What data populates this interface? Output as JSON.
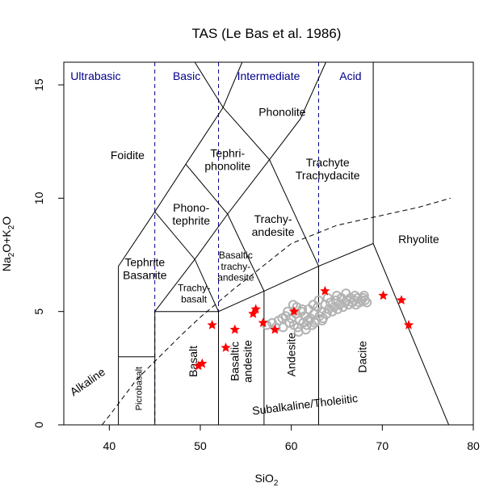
{
  "chart_data": {
    "type": "scatter",
    "title": "TAS (Le Bas et al. 1986)",
    "xlabel": "SiO",
    "xlabel_sub": "2",
    "ylabel_parts": [
      "Na",
      "2",
      "O+K",
      "2",
      "O"
    ],
    "xlim": [
      35,
      80
    ],
    "ylim": [
      0,
      16
    ],
    "x_ticks": [
      40,
      50,
      60,
      70,
      80
    ],
    "y_ticks": [
      0,
      5,
      10,
      15
    ],
    "colors": {
      "series_grey": "#b3b3b3",
      "series_red": "#ff0000",
      "category_labels": "#00008b",
      "lines": "#000000"
    },
    "category_boundaries": [
      45,
      52,
      63
    ],
    "categories": [
      {
        "label": "Ultrabasic",
        "x": 38.5
      },
      {
        "label": "Basic",
        "x": 48.5
      },
      {
        "label": "Intermediate",
        "x": 57.5
      },
      {
        "label": "Acid",
        "x": 66.5
      }
    ],
    "category_label_y": 15.4,
    "field_labels": [
      {
        "lines": [
          "Phonolite"
        ],
        "x": 59.0,
        "y": 13.8,
        "rot": 0
      },
      {
        "lines": [
          "Foidite"
        ],
        "x": 42.0,
        "y": 11.9,
        "rot": 0
      },
      {
        "lines": [
          "Tephri-",
          "phonolite"
        ],
        "x": 53.0,
        "y": 11.7,
        "rot": 0
      },
      {
        "lines": [
          "Trachyte",
          "Trachydacite"
        ],
        "x": 64.0,
        "y": 11.3,
        "rot": 0
      },
      {
        "lines": [
          "Phono-",
          "tephrite"
        ],
        "x": 49.0,
        "y": 9.3,
        "rot": 0
      },
      {
        "lines": [
          "Trachy-",
          "andesite"
        ],
        "x": 58.0,
        "y": 8.8,
        "rot": 0
      },
      {
        "lines": [
          "Rhyolite"
        ],
        "x": 74.0,
        "y": 8.2,
        "rot": 0
      },
      {
        "lines": [
          "Basaltic",
          "trachy-",
          "andesite"
        ],
        "x": 53.9,
        "y": 7.0,
        "rot": 0,
        "size": 12
      },
      {
        "lines": [
          "Tephrite",
          "Basanite"
        ],
        "x": 43.9,
        "y": 6.9,
        "rot": 0
      },
      {
        "lines": [
          "Trachy-",
          "basalt"
        ],
        "x": 49.3,
        "y": 5.8,
        "rot": 0,
        "size": 12
      },
      {
        "lines": [
          "Basalt"
        ],
        "x": 49.2,
        "y": 2.8,
        "rot": -90
      },
      {
        "lines": [
          "Basaltic",
          "andesite"
        ],
        "x": 54.5,
        "y": 2.8,
        "rot": -90
      },
      {
        "lines": [
          "Andesite"
        ],
        "x": 60.0,
        "y": 3.1,
        "rot": -90
      },
      {
        "lines": [
          "Dacite"
        ],
        "x": 67.8,
        "y": 3.0,
        "rot": -90
      },
      {
        "lines": [
          "Picrobasalt"
        ],
        "x": 43.2,
        "y": 1.6,
        "rot": -90,
        "size": 11
      },
      {
        "lines": [
          "Alkaline"
        ],
        "x": 37.6,
        "y": 1.9,
        "rot": -35
      },
      {
        "lines": [
          "Subalkaline/Tholeiitic"
        ],
        "x": 61.5,
        "y": 0.9,
        "rot": -7
      }
    ],
    "field_lines": [
      [
        [
          41,
          0
        ],
        [
          41,
          7
        ],
        [
          45,
          9.4
        ],
        [
          48.4,
          11.5
        ],
        [
          52.5,
          14
        ],
        [
          54.6,
          16
        ]
      ],
      [
        [
          41,
          3
        ],
        [
          45,
          3
        ]
      ],
      [
        [
          45,
          0
        ],
        [
          45,
          5
        ],
        [
          49.4,
          7.3
        ],
        [
          53,
          9.3
        ],
        [
          57.6,
          11.7
        ],
        [
          61,
          13.5
        ],
        [
          63.8,
          16
        ]
      ],
      [
        [
          45,
          5
        ],
        [
          52,
          5
        ],
        [
          57,
          5.9
        ],
        [
          63,
          7
        ],
        [
          69,
          8
        ],
        [
          69,
          16
        ]
      ],
      [
        [
          52,
          0
        ],
        [
          52,
          5
        ]
      ],
      [
        [
          57,
          0
        ],
        [
          57,
          5.9
        ]
      ],
      [
        [
          63,
          0
        ],
        [
          63,
          7
        ]
      ],
      [
        [
          69,
          8
        ],
        [
          77.3,
          0
        ]
      ],
      [
        [
          45,
          9.4
        ],
        [
          49.4,
          7.3
        ],
        [
          52,
          5
        ]
      ],
      [
        [
          48.4,
          11.5
        ],
        [
          53,
          9.3
        ],
        [
          57,
          5.9
        ]
      ],
      [
        [
          52.5,
          14
        ],
        [
          57.6,
          11.7
        ],
        [
          63,
          7
        ]
      ],
      [
        [
          52.5,
          14
        ],
        [
          49.4,
          16
        ]
      ]
    ],
    "dashed_curve": [
      [
        39.2,
        0
      ],
      [
        40,
        0.4
      ],
      [
        43,
        2
      ],
      [
        45,
        2.8
      ],
      [
        48,
        4
      ],
      [
        50,
        4.75
      ],
      [
        53.7,
        6
      ],
      [
        55,
        6.4
      ],
      [
        60,
        8
      ],
      [
        65,
        8.8
      ],
      [
        74,
        9.6
      ],
      [
        77.5,
        10
      ]
    ],
    "series": [
      {
        "name": "red",
        "marker": "star",
        "points": [
          [
            49.8,
            2.6
          ],
          [
            50.2,
            2.7
          ],
          [
            51.3,
            4.4
          ],
          [
            52.8,
            3.4
          ],
          [
            53.8,
            4.2
          ],
          [
            55.8,
            4.9
          ],
          [
            56.1,
            5.1
          ],
          [
            56.9,
            4.5
          ],
          [
            58.2,
            4.2
          ],
          [
            60.3,
            5.0
          ],
          [
            63.7,
            5.9
          ],
          [
            70.1,
            5.7
          ],
          [
            72.1,
            5.5
          ],
          [
            72.9,
            4.4
          ]
        ]
      },
      {
        "name": "grey",
        "marker": "circle",
        "points": [
          [
            57.3,
            4.4
          ],
          [
            57.9,
            4.5
          ],
          [
            58.6,
            4.6
          ],
          [
            59.1,
            4.3
          ],
          [
            59.4,
            4.8
          ],
          [
            59.8,
            4.5
          ],
          [
            60.0,
            4.7
          ],
          [
            60.3,
            4.4
          ],
          [
            60.5,
            4.9
          ],
          [
            60.7,
            4.3
          ],
          [
            60.9,
            4.6
          ],
          [
            61.1,
            5.0
          ],
          [
            61.3,
            4.5
          ],
          [
            61.5,
            4.8
          ],
          [
            61.7,
            4.4
          ],
          [
            61.9,
            5.1
          ],
          [
            62.1,
            4.7
          ],
          [
            62.3,
            4.4
          ],
          [
            62.5,
            4.9
          ],
          [
            62.7,
            4.6
          ],
          [
            62.9,
            5.2
          ],
          [
            63.1,
            4.8
          ],
          [
            63.3,
            5.0
          ],
          [
            63.5,
            4.7
          ],
          [
            63.7,
            5.3
          ],
          [
            63.9,
            4.9
          ],
          [
            64.1,
            5.1
          ],
          [
            64.3,
            5.4
          ],
          [
            64.5,
            5.0
          ],
          [
            64.7,
            5.2
          ],
          [
            64.9,
            5.5
          ],
          [
            65.1,
            5.1
          ],
          [
            65.3,
            5.3
          ],
          [
            65.5,
            5.6
          ],
          [
            65.7,
            5.2
          ],
          [
            65.9,
            5.4
          ],
          [
            66.1,
            5.5
          ],
          [
            66.3,
            5.3
          ],
          [
            66.5,
            5.6
          ],
          [
            66.7,
            5.4
          ],
          [
            66.9,
            5.5
          ],
          [
            67.1,
            5.3
          ],
          [
            67.3,
            5.6
          ],
          [
            67.5,
            5.4
          ],
          [
            67.7,
            5.5
          ],
          [
            67.9,
            5.6
          ],
          [
            68.1,
            5.5
          ],
          [
            68.3,
            5.4
          ],
          [
            60.2,
            5.3
          ],
          [
            60.6,
            5.2
          ],
          [
            61.2,
            5.1
          ],
          [
            59.6,
            5.0
          ],
          [
            62.4,
            5.3
          ],
          [
            63.0,
            5.5
          ],
          [
            64.0,
            5.6
          ],
          [
            65.0,
            5.7
          ],
          [
            66.0,
            5.8
          ],
          [
            67.0,
            5.7
          ],
          [
            68.0,
            5.7
          ],
          [
            61.8,
            4.6
          ],
          [
            62.6,
            4.5
          ],
          [
            63.4,
            4.6
          ],
          [
            60.8,
            4.1
          ],
          [
            61.6,
            4.2
          ],
          [
            59.0,
            4.7
          ],
          [
            58.3,
            4.3
          ]
        ]
      }
    ]
  }
}
